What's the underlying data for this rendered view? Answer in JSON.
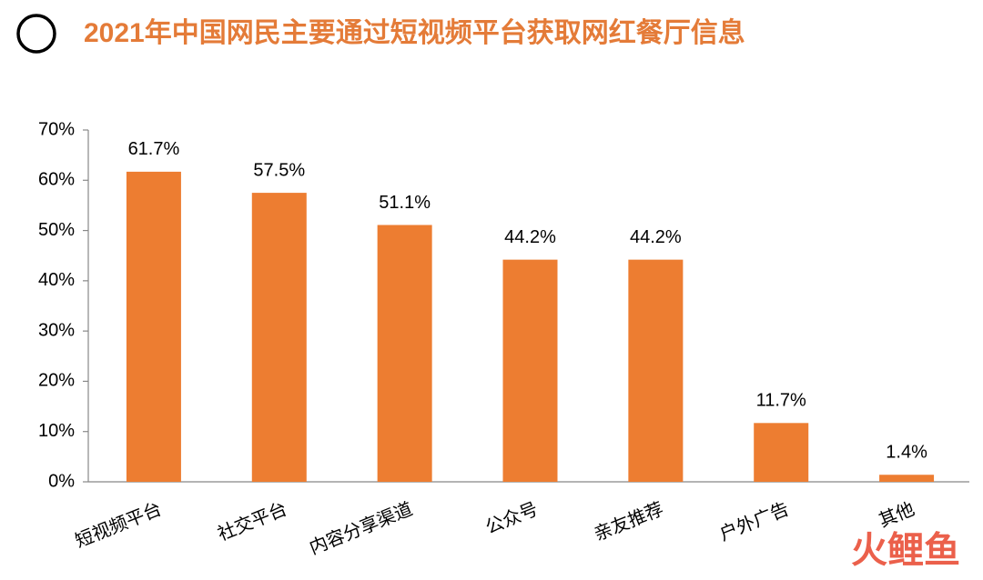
{
  "chart_data": {
    "type": "bar",
    "title": "2021年中国网民主要通过短视频平台获取网红餐厅信息",
    "categories": [
      "短视频平台",
      "社交平台",
      "内容分享渠道",
      "公众号",
      "亲友推荐",
      "户外广告",
      "其他"
    ],
    "values": [
      61.7,
      57.5,
      51.1,
      44.2,
      44.2,
      11.7,
      1.4
    ],
    "value_labels": [
      "61.7%",
      "57.5%",
      "51.1%",
      "44.2%",
      "44.2%",
      "11.7%",
      "1.4%"
    ],
    "color": "#ed7d31",
    "ylim": [
      0,
      70
    ],
    "yticks": [
      {
        "value": 0,
        "label": "0%"
      },
      {
        "value": 10,
        "label": "10%"
      },
      {
        "value": 20,
        "label": "20%"
      },
      {
        "value": 30,
        "label": "30%"
      },
      {
        "value": 40,
        "label": "40%"
      },
      {
        "value": 50,
        "label": "50%"
      },
      {
        "value": 60,
        "label": "60%"
      },
      {
        "value": 70,
        "label": "70%"
      }
    ],
    "grid": false,
    "watermark": "火鲤鱼"
  }
}
